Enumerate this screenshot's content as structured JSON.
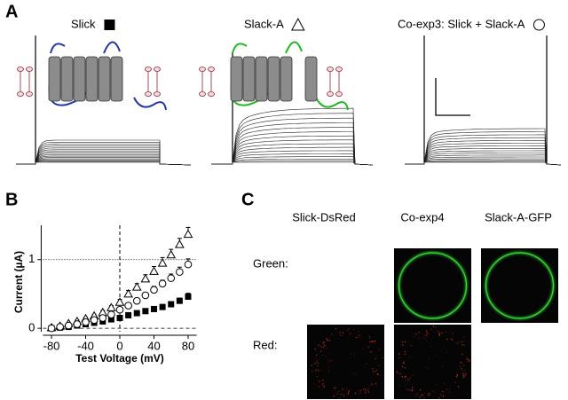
{
  "panel_a": {
    "label": "A"
  },
  "chart_data": {
    "type": "scatter",
    "label": "B",
    "x": [
      -80,
      -70,
      -60,
      -50,
      -40,
      -30,
      -20,
      -10,
      0,
      10,
      20,
      30,
      40,
      50,
      60,
      70,
      80
    ],
    "xlim": [
      -90,
      90
    ],
    "xticks": [
      -80,
      -40,
      0,
      40,
      80
    ],
    "ylim": [
      -0.05,
      1.5
    ],
    "yticks": [
      0,
      1
    ],
    "x_label": "Test Voltage (mV)",
    "y_label": "Current (µA)",
    "hlines": [
      {
        "value": 1,
        "style": "dotted"
      },
      {
        "value": 0,
        "style": "dashed"
      }
    ],
    "vlines": [
      {
        "value": 0,
        "style": "dashed"
      }
    ],
    "series": [
      {
        "name": "Slick",
        "marker": "square-filled",
        "color": "#000000",
        "values": [
          0,
          0.01,
          0.02,
          0.04,
          0.06,
          0.08,
          0.1,
          0.13,
          0.15,
          0.19,
          0.22,
          0.25,
          0.28,
          0.31,
          0.35,
          0.4,
          0.46
        ],
        "errors": [
          0.01,
          0.01,
          0.01,
          0.01,
          0.01,
          0.01,
          0.01,
          0.01,
          0.02,
          0.02,
          0.02,
          0.02,
          0.02,
          0.03,
          0.03,
          0.04,
          0.05
        ]
      },
      {
        "name": "Slack-A",
        "marker": "triangle-open",
        "color": "#000000",
        "values": [
          0.01,
          0.03,
          0.07,
          0.1,
          0.14,
          0.18,
          0.23,
          0.3,
          0.38,
          0.5,
          0.6,
          0.72,
          0.83,
          0.95,
          1.07,
          1.22,
          1.37
        ],
        "errors": [
          0.01,
          0.01,
          0.01,
          0.02,
          0.02,
          0.02,
          0.03,
          0.03,
          0.04,
          0.05,
          0.05,
          0.06,
          0.07,
          0.08,
          0.08,
          0.09,
          0.1
        ]
      },
      {
        "name": "Co-exp3: Slick + Slack-A",
        "marker": "circle-open",
        "color": "#000000",
        "values": [
          0,
          0.02,
          0.04,
          0.06,
          0.09,
          0.12,
          0.15,
          0.2,
          0.27,
          0.33,
          0.4,
          0.48,
          0.56,
          0.65,
          0.73,
          0.82,
          0.93
        ],
        "errors": [
          0.01,
          0.01,
          0.01,
          0.01,
          0.01,
          0.02,
          0.02,
          0.02,
          0.03,
          0.03,
          0.04,
          0.04,
          0.05,
          0.05,
          0.06,
          0.07,
          0.08
        ]
      }
    ]
  },
  "panel_c": {
    "label": "C",
    "columns": [
      "Slick-DsRed",
      "Co-exp4",
      "Slack-A-GFP"
    ],
    "rows": [
      "Green:",
      "Red:"
    ]
  }
}
